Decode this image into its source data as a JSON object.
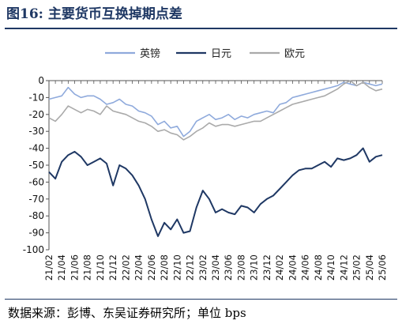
{
  "title": "图16:   主要货币互换掉期点差",
  "source": "数据来源：彭博、东吴证券研究所；单位 bps",
  "colors": {
    "title": "#1f3864",
    "gbp": "#8faadc",
    "jpy": "#1f3864",
    "eur": "#aaaaaa"
  },
  "chart_data": {
    "type": "line",
    "title": "",
    "xlabel": "",
    "ylabel": "",
    "ylim": [
      -100,
      0
    ],
    "yticks": [
      0,
      -10,
      -20,
      -30,
      -40,
      -50,
      -60,
      -70,
      -80,
      -90,
      -100
    ],
    "grid": false,
    "legend_position": "top",
    "x_tick_labels": [
      "21/02",
      "21/04",
      "21/06",
      "21/08",
      "21/10",
      "21/12",
      "22/02",
      "22/04",
      "22/06",
      "22/08",
      "22/10",
      "22/12",
      "23/02",
      "23/04",
      "23/06",
      "23/08",
      "23/10",
      "23/12",
      "24/02",
      "24/04",
      "24/06",
      "24/08",
      "24/10",
      "24/12",
      "25/02",
      "25/04",
      "25/06"
    ],
    "x_range": [
      "2021-02",
      "2025-06"
    ],
    "series": [
      {
        "name": "英镑",
        "x": [
          "2021-02",
          "2021-03",
          "2021-04",
          "2021-05",
          "2021-06",
          "2021-07",
          "2021-08",
          "2021-09",
          "2021-10",
          "2021-11",
          "2021-12",
          "2022-01",
          "2022-02",
          "2022-03",
          "2022-04",
          "2022-05",
          "2022-06",
          "2022-07",
          "2022-08",
          "2022-09",
          "2022-10",
          "2022-11",
          "2022-12",
          "2023-01",
          "2023-02",
          "2023-03",
          "2023-04",
          "2023-05",
          "2023-06",
          "2023-07",
          "2023-08",
          "2023-09",
          "2023-10",
          "2023-11",
          "2023-12",
          "2024-01",
          "2024-02",
          "2024-03",
          "2024-04",
          "2024-05",
          "2024-06",
          "2024-07",
          "2024-08",
          "2024-09",
          "2024-10",
          "2024-11",
          "2024-12",
          "2025-01",
          "2025-02",
          "2025-03",
          "2025-04",
          "2025-05",
          "2025-06"
        ],
        "values": [
          -11,
          -10,
          -9,
          -4,
          -8,
          -10,
          -9,
          -9,
          -11,
          -14,
          -13,
          -11,
          -14,
          -15,
          -18,
          -19,
          -21,
          -26,
          -24,
          -28,
          -27,
          -33,
          -30,
          -24,
          -22,
          -20,
          -23,
          -22,
          -20,
          -23,
          -21,
          -22,
          -20,
          -19,
          -18,
          -19,
          -14,
          -13,
          -10,
          -9,
          -8,
          -7,
          -6,
          -5,
          -4,
          -3,
          -1,
          -2,
          -3,
          -1,
          -2,
          -3,
          -2
        ]
      },
      {
        "name": "日元",
        "x": [
          "2021-02",
          "2021-03",
          "2021-04",
          "2021-05",
          "2021-06",
          "2021-07",
          "2021-08",
          "2021-09",
          "2021-10",
          "2021-11",
          "2021-12",
          "2022-01",
          "2022-02",
          "2022-03",
          "2022-04",
          "2022-05",
          "2022-06",
          "2022-07",
          "2022-08",
          "2022-09",
          "2022-10",
          "2022-11",
          "2022-12",
          "2023-01",
          "2023-02",
          "2023-03",
          "2023-04",
          "2023-05",
          "2023-06",
          "2023-07",
          "2023-08",
          "2023-09",
          "2023-10",
          "2023-11",
          "2023-12",
          "2024-01",
          "2024-02",
          "2024-03",
          "2024-04",
          "2024-05",
          "2024-06",
          "2024-07",
          "2024-08",
          "2024-09",
          "2024-10",
          "2024-11",
          "2024-12",
          "2025-01",
          "2025-02",
          "2025-03",
          "2025-04",
          "2025-05",
          "2025-06"
        ],
        "values": [
          -54,
          -58,
          -48,
          -44,
          -42,
          -45,
          -50,
          -48,
          -46,
          -49,
          -62,
          -50,
          -52,
          -56,
          -62,
          -70,
          -82,
          -92,
          -84,
          -88,
          -82,
          -90,
          -89,
          -75,
          -65,
          -70,
          -78,
          -76,
          -78,
          -79,
          -74,
          -75,
          -78,
          -73,
          -70,
          -68,
          -64,
          -60,
          -56,
          -53,
          -52,
          -52,
          -50,
          -48,
          -51,
          -46,
          -47,
          -46,
          -44,
          -40,
          -48,
          -45,
          -44
        ]
      },
      {
        "name": "欧元",
        "x": [
          "2021-02",
          "2021-03",
          "2021-04",
          "2021-05",
          "2021-06",
          "2021-07",
          "2021-08",
          "2021-09",
          "2021-10",
          "2021-11",
          "2021-12",
          "2022-01",
          "2022-02",
          "2022-03",
          "2022-04",
          "2022-05",
          "2022-06",
          "2022-07",
          "2022-08",
          "2022-09",
          "2022-10",
          "2022-11",
          "2022-12",
          "2023-01",
          "2023-02",
          "2023-03",
          "2023-04",
          "2023-05",
          "2023-06",
          "2023-07",
          "2023-08",
          "2023-09",
          "2023-10",
          "2023-11",
          "2023-12",
          "2024-01",
          "2024-02",
          "2024-03",
          "2024-04",
          "2024-05",
          "2024-06",
          "2024-07",
          "2024-08",
          "2024-09",
          "2024-10",
          "2024-11",
          "2024-12",
          "2025-01",
          "2025-02",
          "2025-03",
          "2025-04",
          "2025-05",
          "2025-06"
        ],
        "values": [
          -22,
          -24,
          -20,
          -15,
          -17,
          -19,
          -17,
          -18,
          -20,
          -15,
          -18,
          -19,
          -20,
          -22,
          -24,
          -25,
          -27,
          -30,
          -29,
          -31,
          -32,
          -35,
          -33,
          -30,
          -28,
          -25,
          -27,
          -26,
          -26,
          -27,
          -26,
          -25,
          -24,
          -24,
          -22,
          -20,
          -18,
          -16,
          -14,
          -13,
          -12,
          -11,
          -10,
          -9,
          -7,
          -5,
          -2,
          0,
          -3,
          -1,
          -4,
          -6,
          -5
        ]
      }
    ]
  }
}
